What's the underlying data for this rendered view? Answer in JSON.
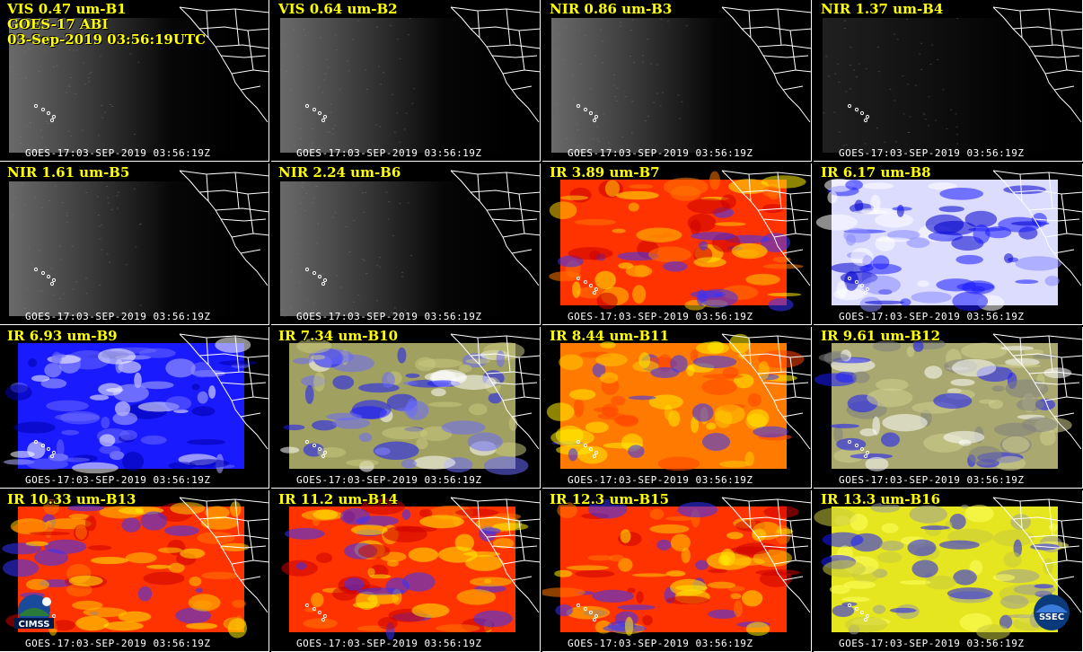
{
  "header": {
    "line2": "GOES-17 ABI",
    "line3": "03-Sep-2019 03:56:19UTC"
  },
  "panels": [
    {
      "label": "VIS 0.47 um-B1",
      "stamp": "GOES-17:03-SEP-2019 03:56:19Z",
      "style": "vis"
    },
    {
      "label": "VIS 0.64 um-B2",
      "stamp": "GOES-17:03-SEP-2019 03:56:19Z",
      "style": "vis"
    },
    {
      "label": "NIR 0.86 um-B3",
      "stamp": "GOES-17:03-SEP-2019 03:56:19Z",
      "style": "vis"
    },
    {
      "label": "NIR 1.37 um-B4",
      "stamp": "GOES-17:03-SEP-2019 03:56:19Z",
      "style": "dark"
    },
    {
      "label": "NIR 1.61 um-B5",
      "stamp": "GOES-17:03-SEP-2019 03:56:19Z",
      "style": "vis"
    },
    {
      "label": "NIR 2.24 um-B6",
      "stamp": "GOES-17:03-SEP-2019 03:56:19Z",
      "style": "vis"
    },
    {
      "label": "IR 3.89 um-B7",
      "stamp": "GOES-17:03-SEP-2019 03:56:19Z",
      "style": "ir-red"
    },
    {
      "label": "IR 6.17 um-B8",
      "stamp": "GOES-17:03-SEP-2019 03:56:19Z",
      "style": "wv-light"
    },
    {
      "label": "IR 6.93 um-B9",
      "stamp": "GOES-17:03-SEP-2019 03:56:19Z",
      "style": "wv-blue"
    },
    {
      "label": "IR 7.34 um-B10",
      "stamp": "GOES-17:03-SEP-2019 03:56:19Z",
      "style": "wv-mixed"
    },
    {
      "label": "IR 8.44 um-B11",
      "stamp": "GOES-17:03-SEP-2019 03:56:19Z",
      "style": "ir-orange"
    },
    {
      "label": "IR 9.61 um-B12",
      "stamp": "GOES-17:03-SEP-2019 03:56:19Z",
      "style": "ozone"
    },
    {
      "label": "IR 10.33 um-B13",
      "stamp": "GOES-17:03-SEP-2019 03:56:19Z",
      "style": "ir-red"
    },
    {
      "label": "IR 11.2 um-B14",
      "stamp": "GOES-17:03-SEP-2019 03:56:19Z",
      "style": "ir-red"
    },
    {
      "label": "IR 12.3 um-B15",
      "stamp": "GOES-17:03-SEP-2019 03:56:19Z",
      "style": "ir-red"
    },
    {
      "label": "IR 13.3 um-B16",
      "stamp": "GOES-17:03-SEP-2019 03:56:19Z",
      "style": "co2"
    }
  ],
  "logos": {
    "left": "CIMSS",
    "right": "SSEC"
  },
  "colors": {
    "label": "#ffff00",
    "stamp": "#ffffff",
    "ir_red": "#ff3300",
    "ir_orange": "#ff8800",
    "ir_yellow": "#ffee00",
    "wv_blue": "#1a1aff",
    "wv_white": "#e8e8ff"
  }
}
